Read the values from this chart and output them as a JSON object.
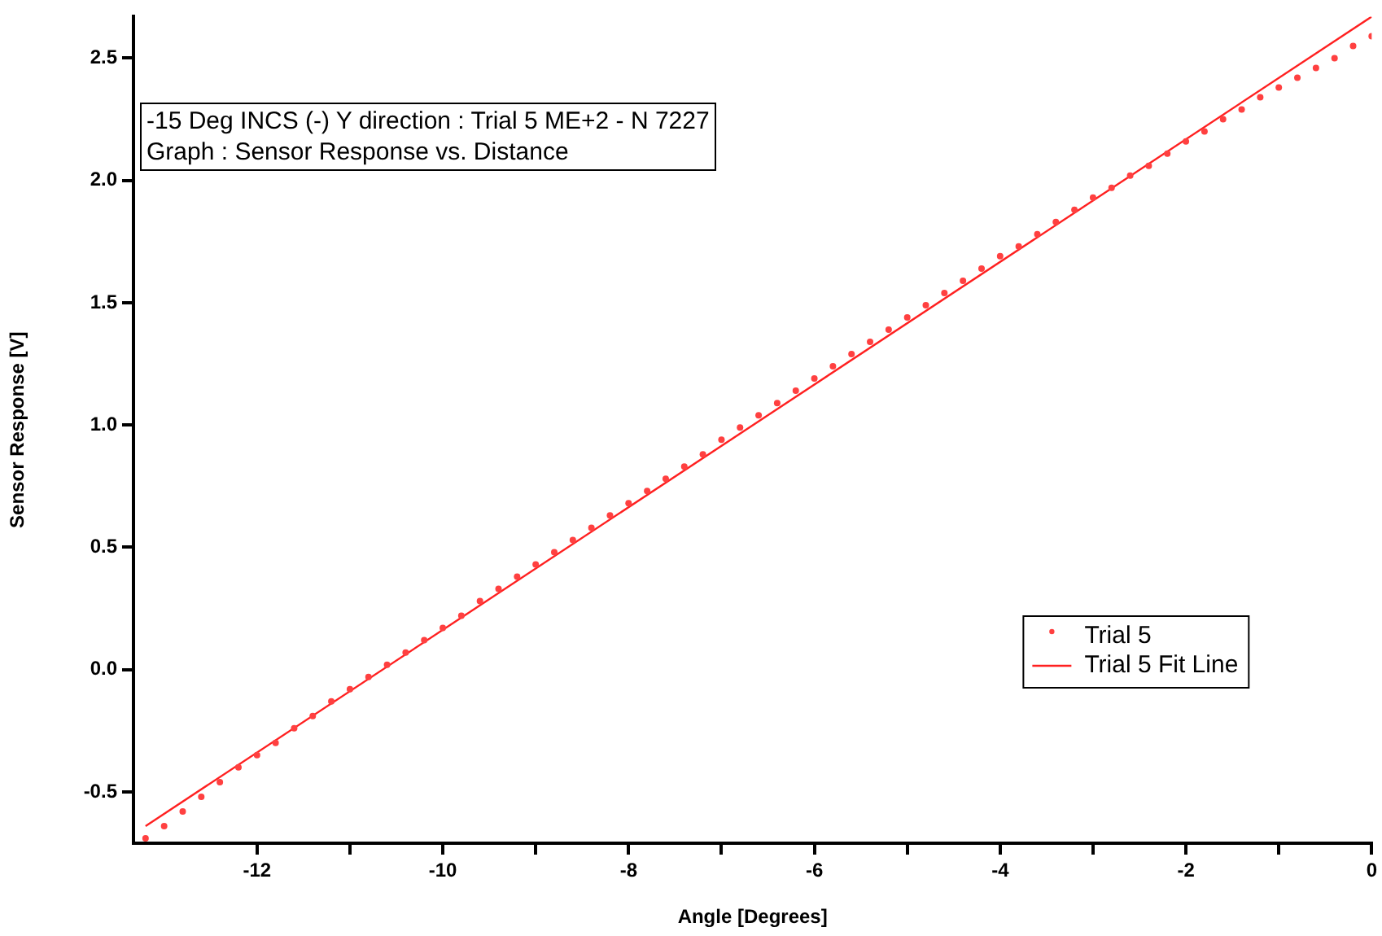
{
  "chart_data": {
    "type": "scatter",
    "xlabel": "Angle [Degrees]",
    "ylabel": "Sensor Response [V]",
    "annotations": [
      "-15 Deg INCS (-) Y direction : Trial 5 ME+2 - N 7227",
      "Graph : Sensor Response vs. Distance"
    ],
    "xlim": [
      -13.33,
      0
    ],
    "ylim": [
      -0.71,
      2.67
    ],
    "xticks": [
      -12,
      {
        "value": -11,
        "label": null
      },
      -10,
      {
        "value": -9,
        "label": null
      },
      -8,
      {
        "value": -7,
        "label": null
      },
      -6,
      {
        "value": -5,
        "label": null
      },
      -4,
      {
        "value": -3,
        "label": null
      },
      -2,
      {
        "value": -1,
        "label": null
      },
      0
    ],
    "yticks": [
      {
        "value": -0.5,
        "label": "-0.5"
      },
      {
        "value": 0,
        "label": "0.0"
      },
      {
        "value": 0.5,
        "label": "0.5"
      },
      {
        "value": 1,
        "label": "1.0"
      },
      {
        "value": 1.5,
        "label": "1.5"
      },
      {
        "value": 2,
        "label": "2.0"
      },
      {
        "value": 2.5,
        "label": "2.5"
      }
    ],
    "grid": false,
    "legend": "bottom right",
    "marker": "circle",
    "series": [
      {
        "name": "Trial 5",
        "color": "#ff4040",
        "x": [
          -13.2,
          -13.0,
          -12.8,
          -12.6,
          -12.4,
          -12.2,
          -12.0,
          -11.8,
          -11.6,
          -11.4,
          -11.2,
          -11.0,
          -10.8,
          -10.6,
          -10.4,
          -10.2,
          -10.0,
          -9.8,
          -9.6,
          -9.4,
          -9.2,
          -9.0,
          -8.8,
          -8.6,
          -8.4,
          -8.2,
          -8.0,
          -7.8,
          -7.6,
          -7.4,
          -7.2,
          -7.0,
          -6.8,
          -6.6,
          -6.4,
          -6.2,
          -6.0,
          -5.8,
          -5.6,
          -5.4,
          -5.2,
          -5.0,
          -4.8,
          -4.6,
          -4.4,
          -4.2,
          -4.0,
          -3.8,
          -3.6,
          -3.4,
          -3.2,
          -3.0,
          -2.8,
          -2.6,
          -2.4,
          -2.2,
          -2.0,
          -1.8,
          -1.6,
          -1.4,
          -1.2,
          -1.0,
          -0.8,
          -0.6,
          -0.4,
          -0.2,
          0.0
        ],
        "values": [
          -0.69,
          -0.64,
          -0.58,
          -0.52,
          -0.46,
          -0.4,
          -0.35,
          -0.3,
          -0.24,
          -0.19,
          -0.13,
          -0.08,
          -0.03,
          0.02,
          0.07,
          0.12,
          0.17,
          0.22,
          0.28,
          0.33,
          0.38,
          0.43,
          0.48,
          0.53,
          0.58,
          0.63,
          0.68,
          0.73,
          0.78,
          0.83,
          0.88,
          0.94,
          0.99,
          1.04,
          1.09,
          1.14,
          1.19,
          1.24,
          1.29,
          1.34,
          1.39,
          1.44,
          1.49,
          1.54,
          1.59,
          1.64,
          1.69,
          1.73,
          1.78,
          1.83,
          1.88,
          1.93,
          1.97,
          2.02,
          2.06,
          2.11,
          2.16,
          2.2,
          2.25,
          2.29,
          2.34,
          2.38,
          2.42,
          2.46,
          2.5,
          2.55,
          2.59
        ]
      },
      {
        "name": "Trial 5 Fit Line",
        "type": "line",
        "color": "#ff2020",
        "line_style": "solid",
        "marker": "none",
        "x": [
          -13.2,
          0
        ],
        "values": [
          -0.64,
          2.67
        ]
      }
    ]
  }
}
